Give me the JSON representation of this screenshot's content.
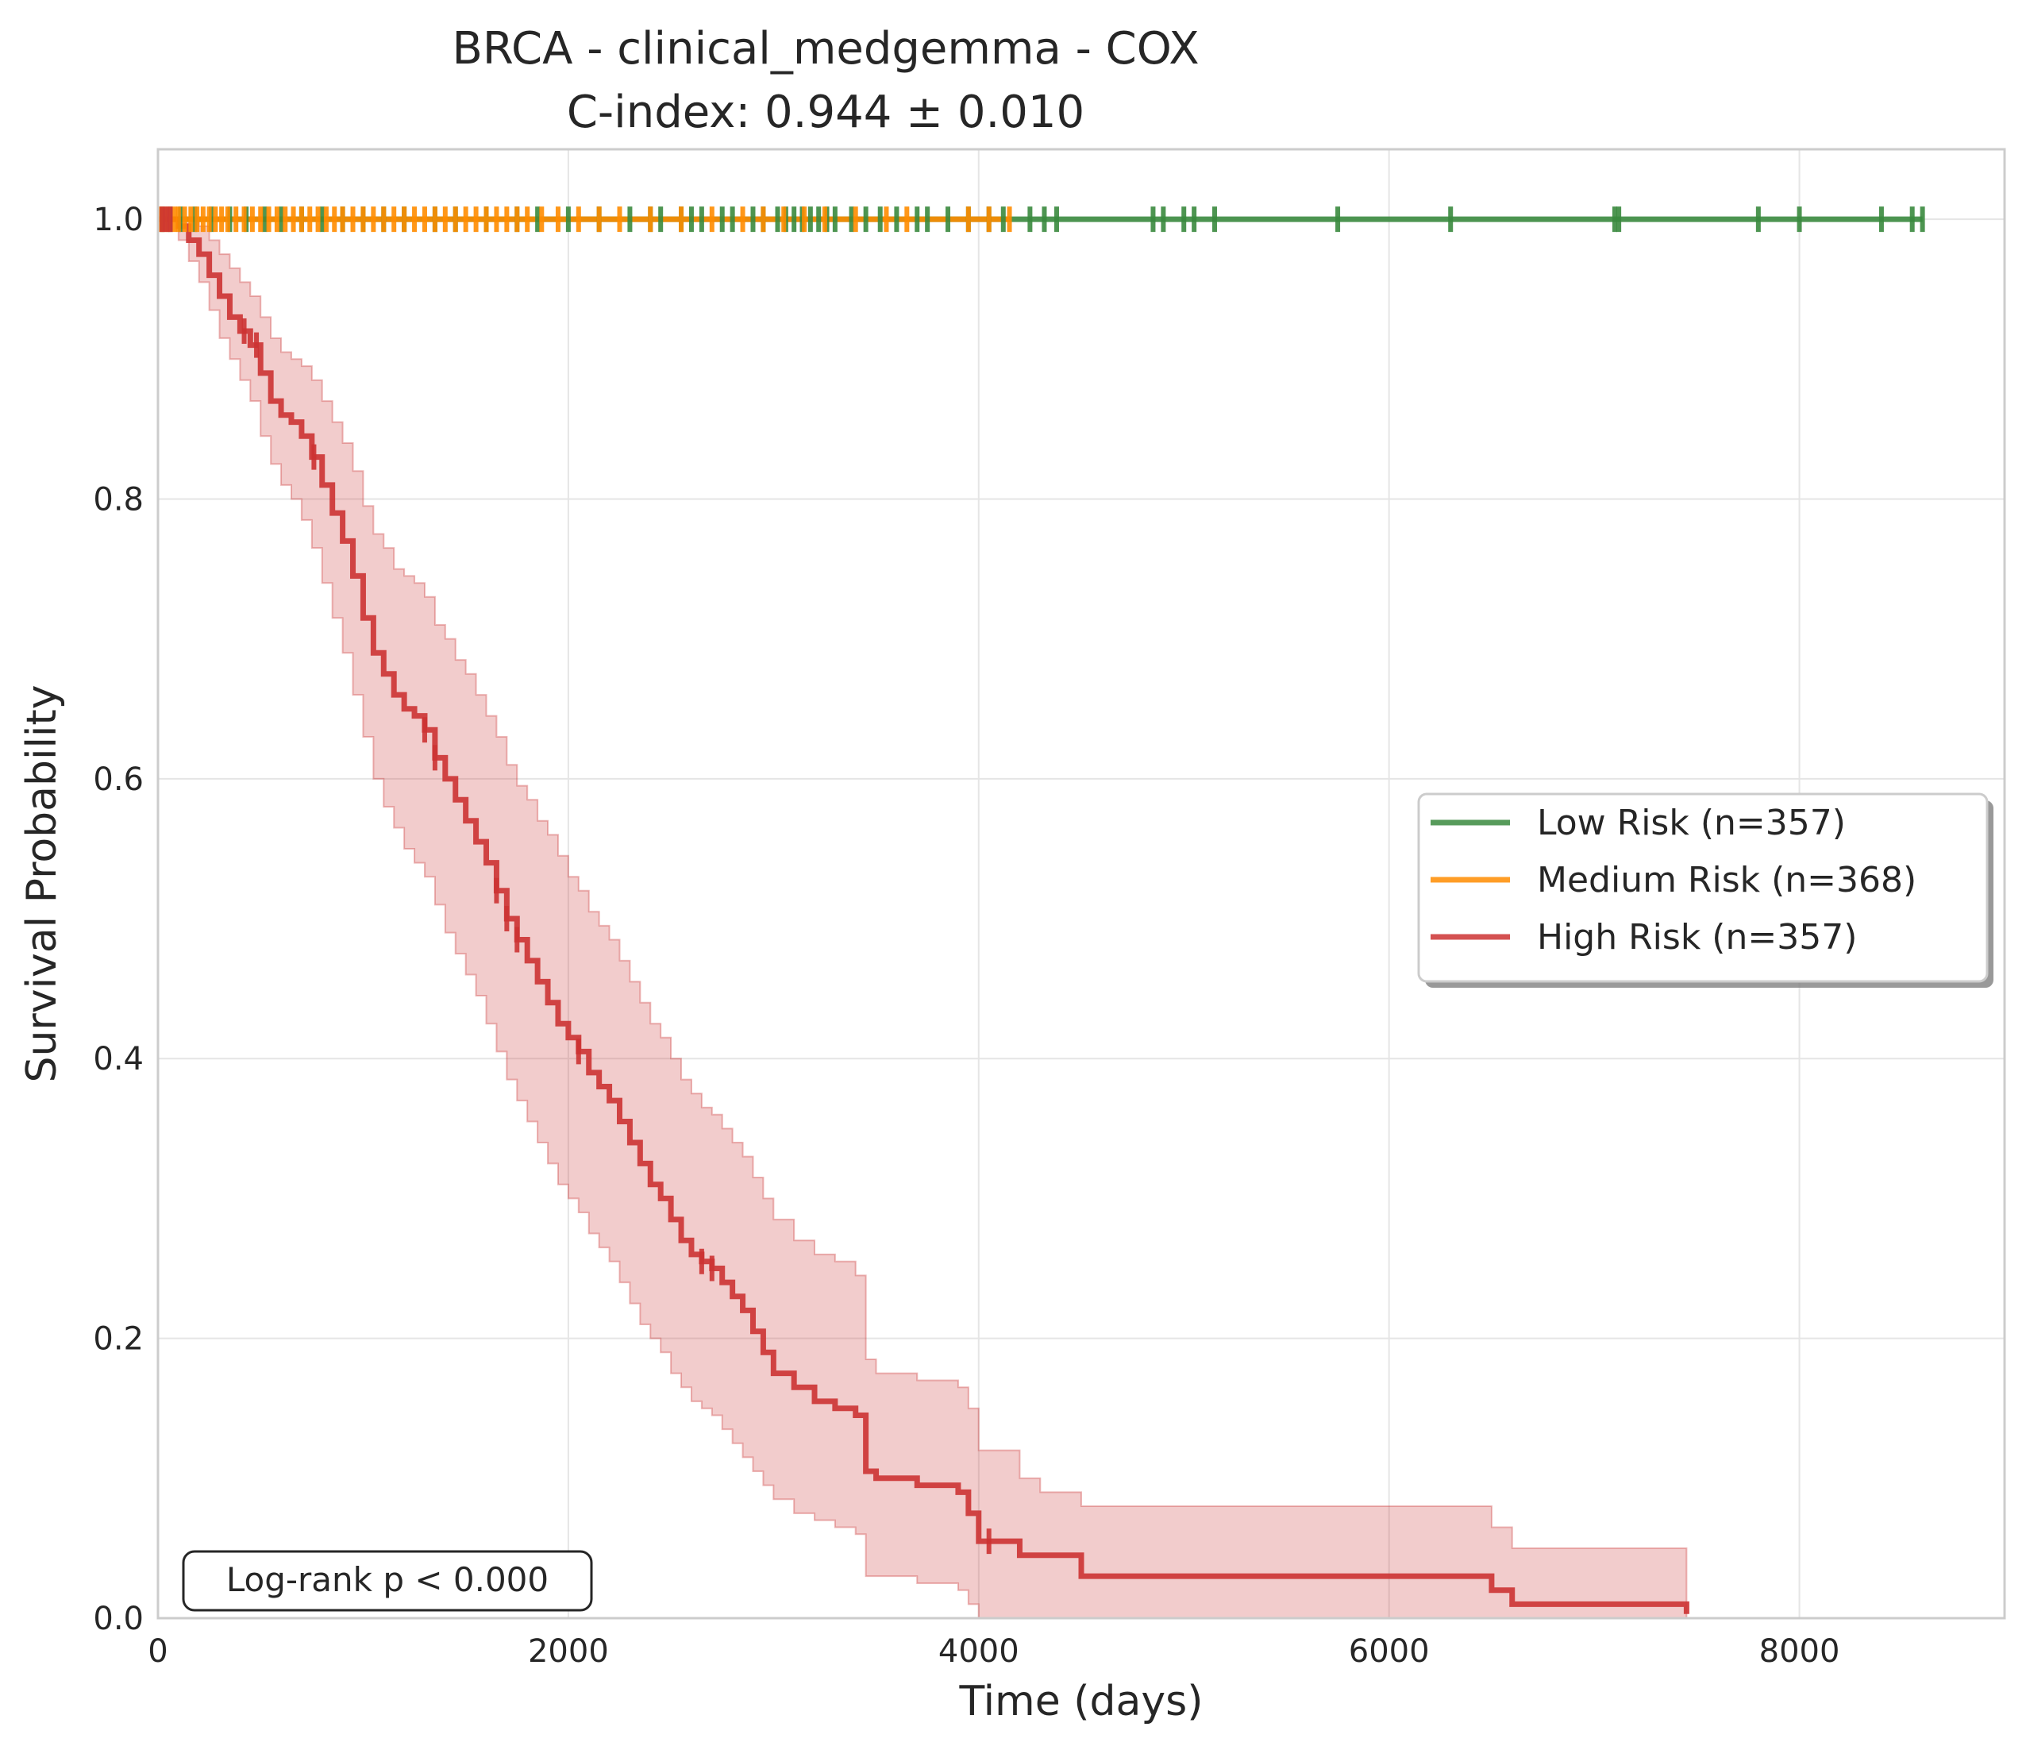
{
  "chart_data": {
    "type": "line",
    "subtype": "kaplan-meier",
    "title": "BRCA - clinical_medgemma - COX",
    "subtitle": "C-index: 0.944 ± 0.010",
    "xlabel": "Time (days)",
    "ylabel": "Survival Probability",
    "xlim": [
      0,
      9000
    ],
    "ylim": [
      0,
      1.05
    ],
    "xticks": [
      0,
      2000,
      4000,
      6000,
      8000
    ],
    "xtick_labels": [
      "0",
      "2000",
      "4000",
      "6000",
      "8000"
    ],
    "yticks": [
      0,
      0.2,
      0.4,
      0.6,
      0.8,
      1.0
    ],
    "ytick_labels": [
      "0.0",
      "0.2",
      "0.4",
      "0.6",
      "0.8",
      "1.0"
    ],
    "grid": true,
    "legend_position": "center-right",
    "annotation": "Log-rank p < 0.000",
    "series": [
      {
        "name": "Low Risk (n=357)",
        "color": "#3a8a3e",
        "x": [
          0,
          8600
        ],
        "y": [
          1.0,
          1.0
        ],
        "censor_times": [
          20,
          60,
          110,
          180,
          260,
          350,
          430,
          520,
          600,
          700,
          800,
          900,
          1000,
          1100,
          1200,
          1350,
          1450,
          1600,
          1750,
          1850,
          2000,
          2150,
          2300,
          2400,
          2450,
          2550,
          2600,
          2650,
          2750,
          2800,
          2900,
          2950,
          3020,
          3060,
          3100,
          3140,
          3180,
          3220,
          3260,
          3300,
          3380,
          3450,
          3520,
          3600,
          3700,
          3750,
          3850,
          3950,
          4050,
          4120,
          4250,
          4320,
          4380,
          4850,
          4900,
          5000,
          5050,
          5150,
          5750,
          6300,
          7100,
          7120,
          7800,
          8000,
          8400,
          8550,
          8600
        ]
      },
      {
        "name": "Medium Risk (n=368)",
        "color": "#ff8c00",
        "x": [
          0,
          4150
        ],
        "y": [
          1.0,
          1.0
        ],
        "censor_times": [
          10,
          30,
          50,
          80,
          100,
          130,
          160,
          190,
          220,
          250,
          280,
          310,
          340,
          380,
          420,
          460,
          500,
          540,
          580,
          620,
          660,
          700,
          740,
          780,
          820,
          860,
          900,
          950,
          1000,
          1050,
          1100,
          1150,
          1200,
          1250,
          1300,
          1350,
          1400,
          1450,
          1500,
          1550,
          1600,
          1650,
          1700,
          1750,
          1800,
          1870,
          1950,
          2050,
          2150,
          2250,
          2400,
          2550,
          2700,
          2850,
          2950,
          3050,
          3150,
          3250,
          3400,
          3550,
          3650,
          3950,
          4050,
          4150
        ]
      },
      {
        "name": "High Risk (n=357)",
        "color": "#cc3333",
        "x": [
          0,
          100,
          150,
          200,
          250,
          300,
          350,
          400,
          450,
          500,
          550,
          600,
          650,
          700,
          750,
          800,
          850,
          900,
          950,
          1000,
          1050,
          1100,
          1150,
          1200,
          1250,
          1300,
          1350,
          1400,
          1450,
          1500,
          1550,
          1600,
          1650,
          1700,
          1750,
          1800,
          1850,
          1900,
          1950,
          2000,
          2050,
          2100,
          2150,
          2200,
          2250,
          2300,
          2350,
          2400,
          2450,
          2500,
          2550,
          2600,
          2650,
          2700,
          2750,
          2800,
          2850,
          2900,
          2950,
          3000,
          3100,
          3200,
          3300,
          3400,
          3450,
          3500,
          3700,
          3900,
          3950,
          4000,
          4100,
          4200,
          4300,
          4500,
          5000,
          6000,
          6450,
          6500,
          6600,
          7000,
          7400,
          7450
        ],
        "y": [
          1.0,
          0.995,
          0.985,
          0.975,
          0.96,
          0.945,
          0.93,
          0.92,
          0.91,
          0.89,
          0.87,
          0.86,
          0.855,
          0.845,
          0.83,
          0.81,
          0.79,
          0.77,
          0.745,
          0.715,
          0.69,
          0.675,
          0.66,
          0.65,
          0.645,
          0.635,
          0.615,
          0.6,
          0.585,
          0.57,
          0.555,
          0.54,
          0.52,
          0.5,
          0.485,
          0.47,
          0.455,
          0.44,
          0.425,
          0.415,
          0.405,
          0.39,
          0.38,
          0.37,
          0.355,
          0.34,
          0.325,
          0.31,
          0.3,
          0.285,
          0.27,
          0.26,
          0.255,
          0.25,
          0.24,
          0.23,
          0.22,
          0.205,
          0.19,
          0.175,
          0.165,
          0.155,
          0.15,
          0.145,
          0.105,
          0.1,
          0.095,
          0.09,
          0.075,
          0.055,
          0.055,
          0.045,
          0.045,
          0.03,
          0.03,
          0.03,
          0.03,
          0.02,
          0.01,
          0.01,
          0.01,
          0.003
        ],
        "ci_lower": [
          1.0,
          0.985,
          0.97,
          0.955,
          0.935,
          0.915,
          0.9,
          0.885,
          0.87,
          0.845,
          0.825,
          0.81,
          0.8,
          0.785,
          0.765,
          0.74,
          0.715,
          0.69,
          0.66,
          0.63,
          0.6,
          0.58,
          0.565,
          0.55,
          0.54,
          0.53,
          0.51,
          0.49,
          0.475,
          0.46,
          0.445,
          0.425,
          0.405,
          0.385,
          0.37,
          0.355,
          0.34,
          0.325,
          0.31,
          0.3,
          0.29,
          0.275,
          0.265,
          0.255,
          0.24,
          0.225,
          0.21,
          0.2,
          0.19,
          0.175,
          0.165,
          0.155,
          0.15,
          0.145,
          0.135,
          0.125,
          0.115,
          0.105,
          0.095,
          0.085,
          0.075,
          0.07,
          0.065,
          0.06,
          0.03,
          0.03,
          0.025,
          0.02,
          0.01,
          0.0,
          0.0,
          0.0,
          0.0,
          0.0,
          0.0,
          0.0,
          0.0,
          0.0,
          0.0,
          0.0,
          0.0,
          0.0
        ],
        "ci_upper": [
          1.0,
          1.0,
          1.0,
          0.995,
          0.985,
          0.975,
          0.965,
          0.955,
          0.945,
          0.93,
          0.915,
          0.905,
          0.9,
          0.895,
          0.885,
          0.87,
          0.855,
          0.84,
          0.82,
          0.795,
          0.775,
          0.765,
          0.75,
          0.745,
          0.74,
          0.73,
          0.71,
          0.7,
          0.685,
          0.675,
          0.66,
          0.645,
          0.63,
          0.61,
          0.595,
          0.585,
          0.57,
          0.56,
          0.545,
          0.53,
          0.52,
          0.505,
          0.495,
          0.485,
          0.47,
          0.455,
          0.44,
          0.425,
          0.415,
          0.4,
          0.385,
          0.375,
          0.365,
          0.36,
          0.35,
          0.34,
          0.33,
          0.315,
          0.3,
          0.285,
          0.27,
          0.26,
          0.255,
          0.245,
          0.185,
          0.175,
          0.17,
          0.165,
          0.15,
          0.12,
          0.12,
          0.1,
          0.09,
          0.08,
          0.08,
          0.08,
          0.08,
          0.065,
          0.05,
          0.05,
          0.05,
          0.05
        ],
        "censor_times": [
          20,
          40,
          60,
          420,
          480,
          760,
          1300,
          1350,
          1650,
          1700,
          1750,
          2050,
          2650,
          2700,
          4050
        ]
      }
    ]
  }
}
